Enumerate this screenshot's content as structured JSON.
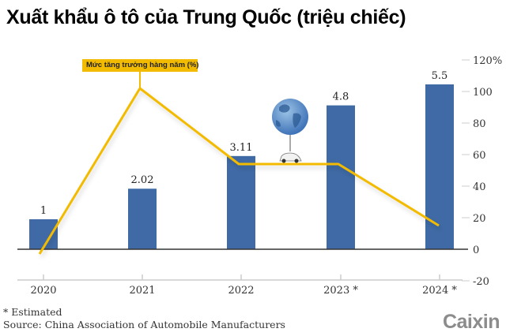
{
  "header": {
    "title": "Xuất khẩu ô tô của Trung Quốc (triệu chiếc)"
  },
  "legend": {
    "line_label": "Mức tăng trưởng hàng năm (%)"
  },
  "footer": {
    "note": "* Estimated",
    "source": "Source: China Association of Automobile Manufacturers",
    "logo": "Caixin"
  },
  "colors": {
    "bar": "#3f6aa5",
    "line": "#f3bb00",
    "axis": "#333333",
    "tick": "#cccccc"
  },
  "chart_data": {
    "type": "bar",
    "title": "Xuất khẩu ô tô của Trung Quốc (triệu chiếc)",
    "categories": [
      "2020",
      "2021",
      "2022",
      "2023 *",
      "2024 *"
    ],
    "series": [
      {
        "name": "Xuất khẩu ô tô (triệu chiếc)",
        "type": "bar",
        "values": [
          1,
          2.02,
          3.11,
          4.8,
          5.5
        ],
        "labels": [
          "1",
          "2.02",
          "3.11",
          "4.8",
          "5.5"
        ]
      },
      {
        "name": "Mức tăng trưởng hàng năm (%)",
        "type": "line",
        "axis": "right",
        "values": [
          -3,
          102,
          54,
          54,
          15
        ]
      }
    ],
    "y_right": {
      "ticks": [
        "120%",
        "100",
        "80",
        "60",
        "40",
        "20",
        "0",
        "-20"
      ],
      "range": [
        -20,
        120
      ]
    },
    "xlabel": "",
    "ylabel": "",
    "annotations": [
      "* Estimated"
    ],
    "grid": false,
    "legend_position": "top-left"
  }
}
